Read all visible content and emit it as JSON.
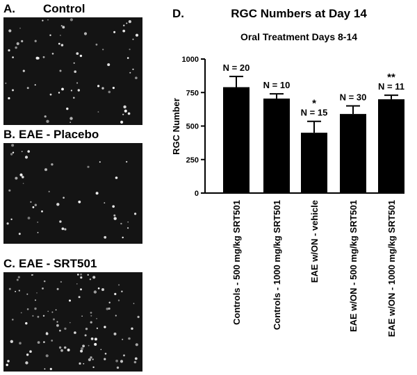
{
  "panels": [
    {
      "label": "A.",
      "title": "Control"
    },
    {
      "label": "B.",
      "title": "EAE - Placebo"
    },
    {
      "label": "C.",
      "title": "EAE - SRT501"
    }
  ],
  "chart_data": {
    "type": "bar",
    "panel_label": "D.",
    "title": "RGC Numbers at Day 14",
    "subtitle": "Oral Treatment Days 8-14",
    "y_label": "RGC Number",
    "categories": [
      "Controls - 500 mg/kg SRT501",
      "Controls - 1000 mg/kg SRT501",
      "EAE w/ON - vehicle",
      "EAE w/ON - 500 mg/kg SRT501",
      "EAE w/ON - 1000 mg/kg SRT501"
    ],
    "values": [
      790,
      705,
      450,
      590,
      700
    ],
    "errors": [
      80,
      35,
      85,
      60,
      30
    ],
    "n_labels": [
      "N = 20",
      "N = 10",
      "N = 15",
      "N = 30",
      "N = 11"
    ],
    "significance": [
      null,
      null,
      "*",
      null,
      "**"
    ],
    "color": "#000000",
    "ylim": [
      0,
      1000
    ],
    "yticks": [
      0,
      250,
      500,
      750,
      1000
    ]
  }
}
